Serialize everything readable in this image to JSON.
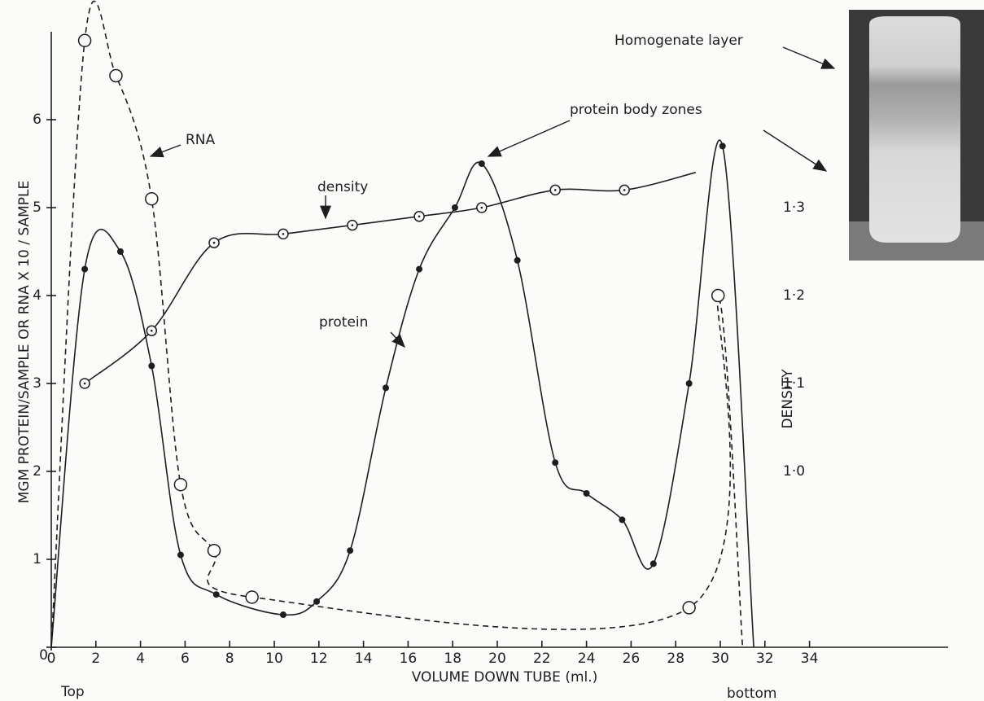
{
  "chart_data": {
    "type": "line",
    "xlabel": "VOLUME DOWN TUBE  (ml.)",
    "ylabel": "MGM PROTEIN/SAMPLE OR RNA X 10 / SAMPLE",
    "y2label": "DENSITY",
    "annotations": [
      "RNA",
      "density",
      "protein",
      "protein body zones",
      "Homogenate layer",
      "Top",
      "bottom"
    ],
    "xlim": [
      0,
      40
    ],
    "xticks": [
      0,
      2,
      4,
      6,
      8,
      10,
      12,
      14,
      16,
      18,
      20,
      22,
      24,
      26,
      28,
      30,
      32,
      34
    ],
    "ylim": [
      0,
      7
    ],
    "yticks": [
      0,
      1,
      2,
      3,
      4,
      5,
      6
    ],
    "y2lim": [
      0.8,
      1.5
    ],
    "y2ticks": [
      {
        "value": 1.0,
        "label": "1·0"
      },
      {
        "value": 1.1,
        "label": "1·1"
      },
      {
        "value": 1.2,
        "label": "1·2"
      },
      {
        "value": 1.3,
        "label": "1·3"
      }
    ],
    "series": [
      {
        "name": "protein",
        "color": "#1e1e1e",
        "style": "solid",
        "marker": "filled",
        "x": [
          0,
          1.5,
          3.1,
          4.5,
          5.8,
          7.4,
          10.4,
          11.9,
          13.4,
          15.0,
          16.5,
          18.1,
          19.3,
          20.9,
          22.6,
          24.0,
          25.6,
          27.0,
          28.6,
          30.1,
          31.5
        ],
        "values": [
          0,
          4.3,
          4.5,
          3.2,
          1.05,
          0.6,
          0.37,
          0.52,
          1.1,
          2.95,
          4.3,
          5.0,
          5.5,
          4.4,
          2.1,
          1.75,
          1.45,
          0.95,
          3.0,
          5.7,
          0
        ],
        "markers": [
          false,
          true,
          true,
          true,
          true,
          true,
          true,
          true,
          true,
          true,
          true,
          true,
          true,
          true,
          true,
          true,
          true,
          true,
          true,
          true,
          false
        ]
      },
      {
        "name": "RNA",
        "color": "#1e1e1e",
        "style": "dashed",
        "marker": "open",
        "x": [
          0,
          1.5,
          2.9,
          4.5,
          5.8,
          7.3,
          9.0,
          28.6,
          29.9,
          31.0
        ],
        "values": [
          0,
          6.9,
          6.5,
          5.1,
          1.85,
          1.1,
          0.57,
          0.45,
          4.0,
          0
        ],
        "markers": [
          false,
          true,
          true,
          true,
          true,
          true,
          true,
          true,
          true,
          false
        ]
      },
      {
        "name": "density",
        "color": "#1e1e1e",
        "style": "solid",
        "marker": "open-dot",
        "axis": "y2",
        "x": [
          1.5,
          4.5,
          7.3,
          10.4,
          13.5,
          16.5,
          19.3,
          22.6,
          25.7,
          28.9
        ],
        "values": [
          1.1,
          1.16,
          1.26,
          1.27,
          1.28,
          1.29,
          1.3,
          1.32,
          1.32,
          1.34
        ],
        "markers": [
          true,
          true,
          true,
          true,
          true,
          true,
          true,
          true,
          true,
          false
        ]
      }
    ]
  }
}
